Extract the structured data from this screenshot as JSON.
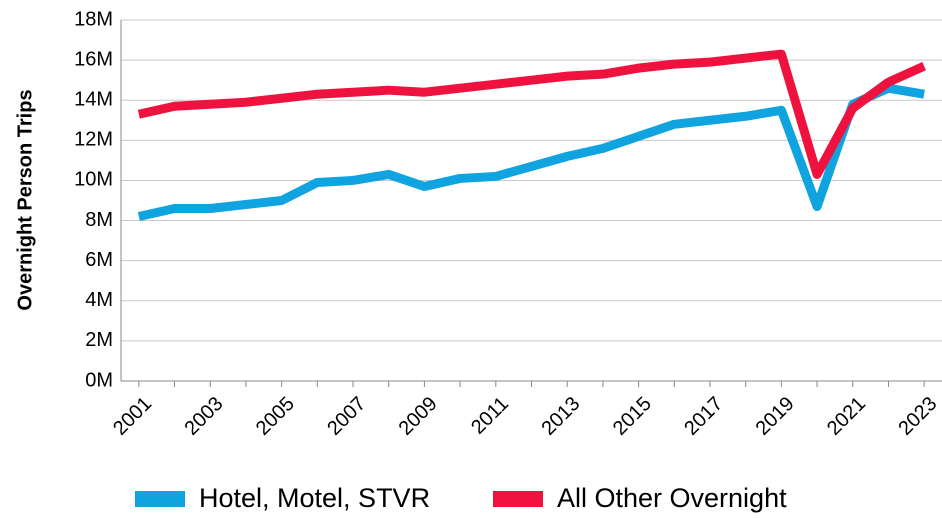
{
  "chart_data": {
    "type": "line",
    "y_label": "Overnight Person Trips",
    "categories": [
      "2001",
      null,
      "2003",
      null,
      "2005",
      null,
      "2007",
      null,
      "2009",
      null,
      "2011",
      null,
      "2013",
      null,
      "2015",
      null,
      "2017",
      null,
      "2019",
      null,
      "2021",
      null,
      "2023"
    ],
    "series": [
      {
        "name": "Hotel, Motel, STVR",
        "color": "#0fa3e0",
        "values": [
          8200000,
          8600000,
          8600000,
          8800000,
          9000000,
          9900000,
          10000000,
          10300000,
          9700000,
          10100000,
          10200000,
          10700000,
          11200000,
          11600000,
          12200000,
          12800000,
          13000000,
          13200000,
          13500000,
          8700000,
          13800000,
          14600000,
          14300000
        ]
      },
      {
        "name": "All Other Overnight",
        "color": "#f0123e",
        "values": [
          13300000,
          13700000,
          13800000,
          13900000,
          14100000,
          14300000,
          14400000,
          14500000,
          14400000,
          14600000,
          14800000,
          15000000,
          15200000,
          15300000,
          15600000,
          15800000,
          15900000,
          16100000,
          16300000,
          10300000,
          13600000,
          14900000,
          15700000
        ]
      }
    ],
    "ylim": [
      0,
      18000000
    ],
    "yticks": [
      {
        "value": 0,
        "label": "0M"
      },
      {
        "value": 2000000,
        "label": "2M"
      },
      {
        "value": 4000000,
        "label": "4M"
      },
      {
        "value": 6000000,
        "label": "6M"
      },
      {
        "value": 8000000,
        "label": "8M"
      },
      {
        "value": 10000000,
        "label": "10M"
      },
      {
        "value": 12000000,
        "label": "12M"
      },
      {
        "value": 14000000,
        "label": "14M"
      },
      {
        "value": 16000000,
        "label": "16M"
      },
      {
        "value": 18000000,
        "label": "18M"
      }
    ],
    "grid": true,
    "legend": "bottom"
  }
}
